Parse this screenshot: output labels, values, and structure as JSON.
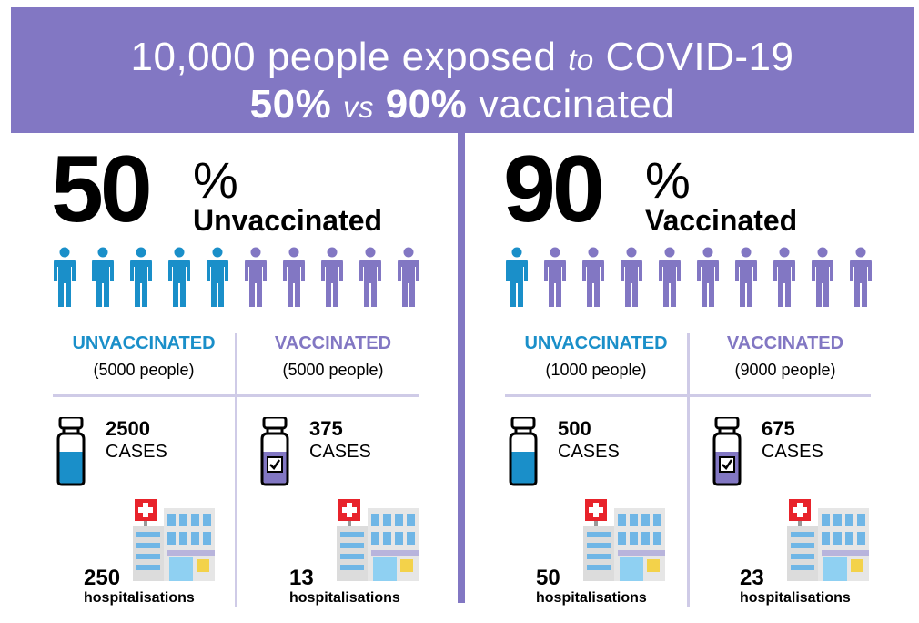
{
  "header": {
    "line1_a": "10,000 people exposed",
    "line1_to": "to",
    "line1_b": "COVID-19",
    "line2_p1": "50%",
    "line2_vs": "vs",
    "line2_p2": "90%",
    "line2_b": "vaccinated"
  },
  "colors": {
    "banner": "#8277c3",
    "unvaccinated": "#1a8fc9",
    "vaccinated": "#8277c3"
  },
  "panels": [
    {
      "big_number": "50",
      "percent_sign": "%",
      "label": "Unvaccinated",
      "unvaccinated_icons": 5,
      "vaccinated_icons": 5,
      "unv_header": "UNVACCINATED",
      "unv_people": "(5000 people)",
      "vac_header": "VACCINATED",
      "vac_people": "(5000 people)",
      "unv_cases": "2500",
      "vac_cases": "375",
      "cases_word": "CASES",
      "unv_hosp": "250",
      "vac_hosp": "13",
      "hosp_word": "hospitalisations"
    },
    {
      "big_number": "90",
      "percent_sign": "%",
      "label": "Vaccinated",
      "unvaccinated_icons": 1,
      "vaccinated_icons": 9,
      "unv_header": "UNVACCINATED",
      "unv_people": "(1000 people)",
      "vac_header": "VACCINATED",
      "vac_people": "(9000 people)",
      "unv_cases": "500",
      "vac_cases": "675",
      "cases_word": "CASES",
      "unv_hosp": "50",
      "vac_hosp": "23",
      "hosp_word": "hospitalisations"
    }
  ]
}
